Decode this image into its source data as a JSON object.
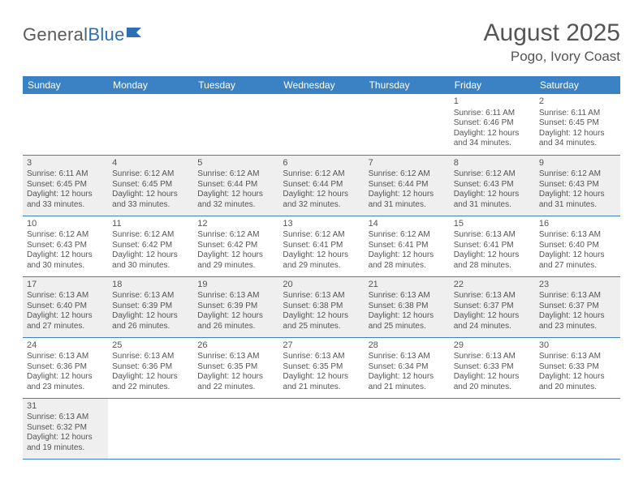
{
  "logo": {
    "text1": "General",
    "text2": "Blue"
  },
  "header": {
    "title": "August 2025",
    "location": "Pogo, Ivory Coast"
  },
  "colors": {
    "header_bg": "#3b82c4",
    "header_text": "#ffffff",
    "row_divider": "#3b82c4",
    "shaded_row": "#efefef",
    "text": "#555555",
    "logo_blue": "#2d6fb3"
  },
  "weekdays": [
    "Sunday",
    "Monday",
    "Tuesday",
    "Wednesday",
    "Thursday",
    "Friday",
    "Saturday"
  ],
  "weeks": [
    {
      "shaded": false,
      "cells": [
        null,
        null,
        null,
        null,
        null,
        {
          "day": "1",
          "sunrise": "Sunrise: 6:11 AM",
          "sunset": "Sunset: 6:46 PM",
          "daylight1": "Daylight: 12 hours",
          "daylight2": "and 34 minutes."
        },
        {
          "day": "2",
          "sunrise": "Sunrise: 6:11 AM",
          "sunset": "Sunset: 6:45 PM",
          "daylight1": "Daylight: 12 hours",
          "daylight2": "and 34 minutes."
        }
      ]
    },
    {
      "shaded": true,
      "cells": [
        {
          "day": "3",
          "sunrise": "Sunrise: 6:11 AM",
          "sunset": "Sunset: 6:45 PM",
          "daylight1": "Daylight: 12 hours",
          "daylight2": "and 33 minutes."
        },
        {
          "day": "4",
          "sunrise": "Sunrise: 6:12 AM",
          "sunset": "Sunset: 6:45 PM",
          "daylight1": "Daylight: 12 hours",
          "daylight2": "and 33 minutes."
        },
        {
          "day": "5",
          "sunrise": "Sunrise: 6:12 AM",
          "sunset": "Sunset: 6:44 PM",
          "daylight1": "Daylight: 12 hours",
          "daylight2": "and 32 minutes."
        },
        {
          "day": "6",
          "sunrise": "Sunrise: 6:12 AM",
          "sunset": "Sunset: 6:44 PM",
          "daylight1": "Daylight: 12 hours",
          "daylight2": "and 32 minutes."
        },
        {
          "day": "7",
          "sunrise": "Sunrise: 6:12 AM",
          "sunset": "Sunset: 6:44 PM",
          "daylight1": "Daylight: 12 hours",
          "daylight2": "and 31 minutes."
        },
        {
          "day": "8",
          "sunrise": "Sunrise: 6:12 AM",
          "sunset": "Sunset: 6:43 PM",
          "daylight1": "Daylight: 12 hours",
          "daylight2": "and 31 minutes."
        },
        {
          "day": "9",
          "sunrise": "Sunrise: 6:12 AM",
          "sunset": "Sunset: 6:43 PM",
          "daylight1": "Daylight: 12 hours",
          "daylight2": "and 31 minutes."
        }
      ]
    },
    {
      "shaded": false,
      "cells": [
        {
          "day": "10",
          "sunrise": "Sunrise: 6:12 AM",
          "sunset": "Sunset: 6:43 PM",
          "daylight1": "Daylight: 12 hours",
          "daylight2": "and 30 minutes."
        },
        {
          "day": "11",
          "sunrise": "Sunrise: 6:12 AM",
          "sunset": "Sunset: 6:42 PM",
          "daylight1": "Daylight: 12 hours",
          "daylight2": "and 30 minutes."
        },
        {
          "day": "12",
          "sunrise": "Sunrise: 6:12 AM",
          "sunset": "Sunset: 6:42 PM",
          "daylight1": "Daylight: 12 hours",
          "daylight2": "and 29 minutes."
        },
        {
          "day": "13",
          "sunrise": "Sunrise: 6:12 AM",
          "sunset": "Sunset: 6:41 PM",
          "daylight1": "Daylight: 12 hours",
          "daylight2": "and 29 minutes."
        },
        {
          "day": "14",
          "sunrise": "Sunrise: 6:12 AM",
          "sunset": "Sunset: 6:41 PM",
          "daylight1": "Daylight: 12 hours",
          "daylight2": "and 28 minutes."
        },
        {
          "day": "15",
          "sunrise": "Sunrise: 6:13 AM",
          "sunset": "Sunset: 6:41 PM",
          "daylight1": "Daylight: 12 hours",
          "daylight2": "and 28 minutes."
        },
        {
          "day": "16",
          "sunrise": "Sunrise: 6:13 AM",
          "sunset": "Sunset: 6:40 PM",
          "daylight1": "Daylight: 12 hours",
          "daylight2": "and 27 minutes."
        }
      ]
    },
    {
      "shaded": true,
      "cells": [
        {
          "day": "17",
          "sunrise": "Sunrise: 6:13 AM",
          "sunset": "Sunset: 6:40 PM",
          "daylight1": "Daylight: 12 hours",
          "daylight2": "and 27 minutes."
        },
        {
          "day": "18",
          "sunrise": "Sunrise: 6:13 AM",
          "sunset": "Sunset: 6:39 PM",
          "daylight1": "Daylight: 12 hours",
          "daylight2": "and 26 minutes."
        },
        {
          "day": "19",
          "sunrise": "Sunrise: 6:13 AM",
          "sunset": "Sunset: 6:39 PM",
          "daylight1": "Daylight: 12 hours",
          "daylight2": "and 26 minutes."
        },
        {
          "day": "20",
          "sunrise": "Sunrise: 6:13 AM",
          "sunset": "Sunset: 6:38 PM",
          "daylight1": "Daylight: 12 hours",
          "daylight2": "and 25 minutes."
        },
        {
          "day": "21",
          "sunrise": "Sunrise: 6:13 AM",
          "sunset": "Sunset: 6:38 PM",
          "daylight1": "Daylight: 12 hours",
          "daylight2": "and 25 minutes."
        },
        {
          "day": "22",
          "sunrise": "Sunrise: 6:13 AM",
          "sunset": "Sunset: 6:37 PM",
          "daylight1": "Daylight: 12 hours",
          "daylight2": "and 24 minutes."
        },
        {
          "day": "23",
          "sunrise": "Sunrise: 6:13 AM",
          "sunset": "Sunset: 6:37 PM",
          "daylight1": "Daylight: 12 hours",
          "daylight2": "and 23 minutes."
        }
      ]
    },
    {
      "shaded": false,
      "cells": [
        {
          "day": "24",
          "sunrise": "Sunrise: 6:13 AM",
          "sunset": "Sunset: 6:36 PM",
          "daylight1": "Daylight: 12 hours",
          "daylight2": "and 23 minutes."
        },
        {
          "day": "25",
          "sunrise": "Sunrise: 6:13 AM",
          "sunset": "Sunset: 6:36 PM",
          "daylight1": "Daylight: 12 hours",
          "daylight2": "and 22 minutes."
        },
        {
          "day": "26",
          "sunrise": "Sunrise: 6:13 AM",
          "sunset": "Sunset: 6:35 PM",
          "daylight1": "Daylight: 12 hours",
          "daylight2": "and 22 minutes."
        },
        {
          "day": "27",
          "sunrise": "Sunrise: 6:13 AM",
          "sunset": "Sunset: 6:35 PM",
          "daylight1": "Daylight: 12 hours",
          "daylight2": "and 21 minutes."
        },
        {
          "day": "28",
          "sunrise": "Sunrise: 6:13 AM",
          "sunset": "Sunset: 6:34 PM",
          "daylight1": "Daylight: 12 hours",
          "daylight2": "and 21 minutes."
        },
        {
          "day": "29",
          "sunrise": "Sunrise: 6:13 AM",
          "sunset": "Sunset: 6:33 PM",
          "daylight1": "Daylight: 12 hours",
          "daylight2": "and 20 minutes."
        },
        {
          "day": "30",
          "sunrise": "Sunrise: 6:13 AM",
          "sunset": "Sunset: 6:33 PM",
          "daylight1": "Daylight: 12 hours",
          "daylight2": "and 20 minutes."
        }
      ]
    },
    {
      "shaded": true,
      "cells": [
        {
          "day": "31",
          "sunrise": "Sunrise: 6:13 AM",
          "sunset": "Sunset: 6:32 PM",
          "daylight1": "Daylight: 12 hours",
          "daylight2": "and 19 minutes."
        },
        null,
        null,
        null,
        null,
        null,
        null
      ]
    }
  ]
}
